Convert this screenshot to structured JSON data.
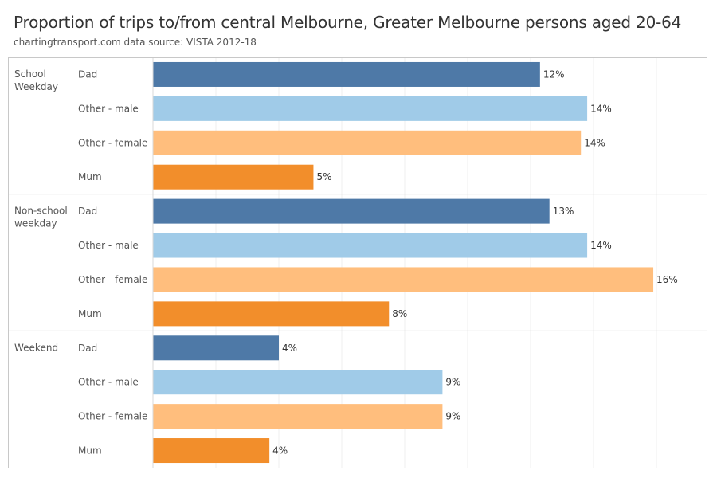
{
  "title": "Proportion of trips to/from central Melbourne, Greater Melbourne persons aged 20-64",
  "subtitle": "chartingtransport.com  data source: VISTA 2012-18",
  "chart_data": {
    "type": "bar",
    "orientation": "horizontal",
    "title": "Proportion of trips to/from central Melbourne, Greater Melbourne persons aged 20-64",
    "xlabel": "",
    "ylabel": "",
    "xlim": [
      0,
      0.17
    ],
    "grid": true,
    "value_format": "percent",
    "categories": [
      "Dad",
      "Other - male",
      "Other - female",
      "Mum"
    ],
    "colors": {
      "Dad": "#4e79a7",
      "Other - male": "#a0cbe8",
      "Other - female": "#ffbe7d",
      "Mum": "#f28e2b"
    },
    "groups": [
      {
        "name": "School Weekday",
        "label_lines": [
          "School",
          "Weekday"
        ],
        "values": [
          0.123,
          0.138,
          0.136,
          0.051
        ],
        "labels": [
          "12%",
          "14%",
          "14%",
          "5%"
        ]
      },
      {
        "name": "Non-school weekday",
        "label_lines": [
          "Non-school",
          "weekday"
        ],
        "values": [
          0.126,
          0.138,
          0.159,
          0.075
        ],
        "labels": [
          "13%",
          "14%",
          "16%",
          "8%"
        ]
      },
      {
        "name": "Weekend",
        "label_lines": [
          "Weekend"
        ],
        "values": [
          0.04,
          0.092,
          0.092,
          0.037
        ],
        "labels": [
          "4%",
          "9%",
          "9%",
          "4%"
        ]
      }
    ]
  }
}
